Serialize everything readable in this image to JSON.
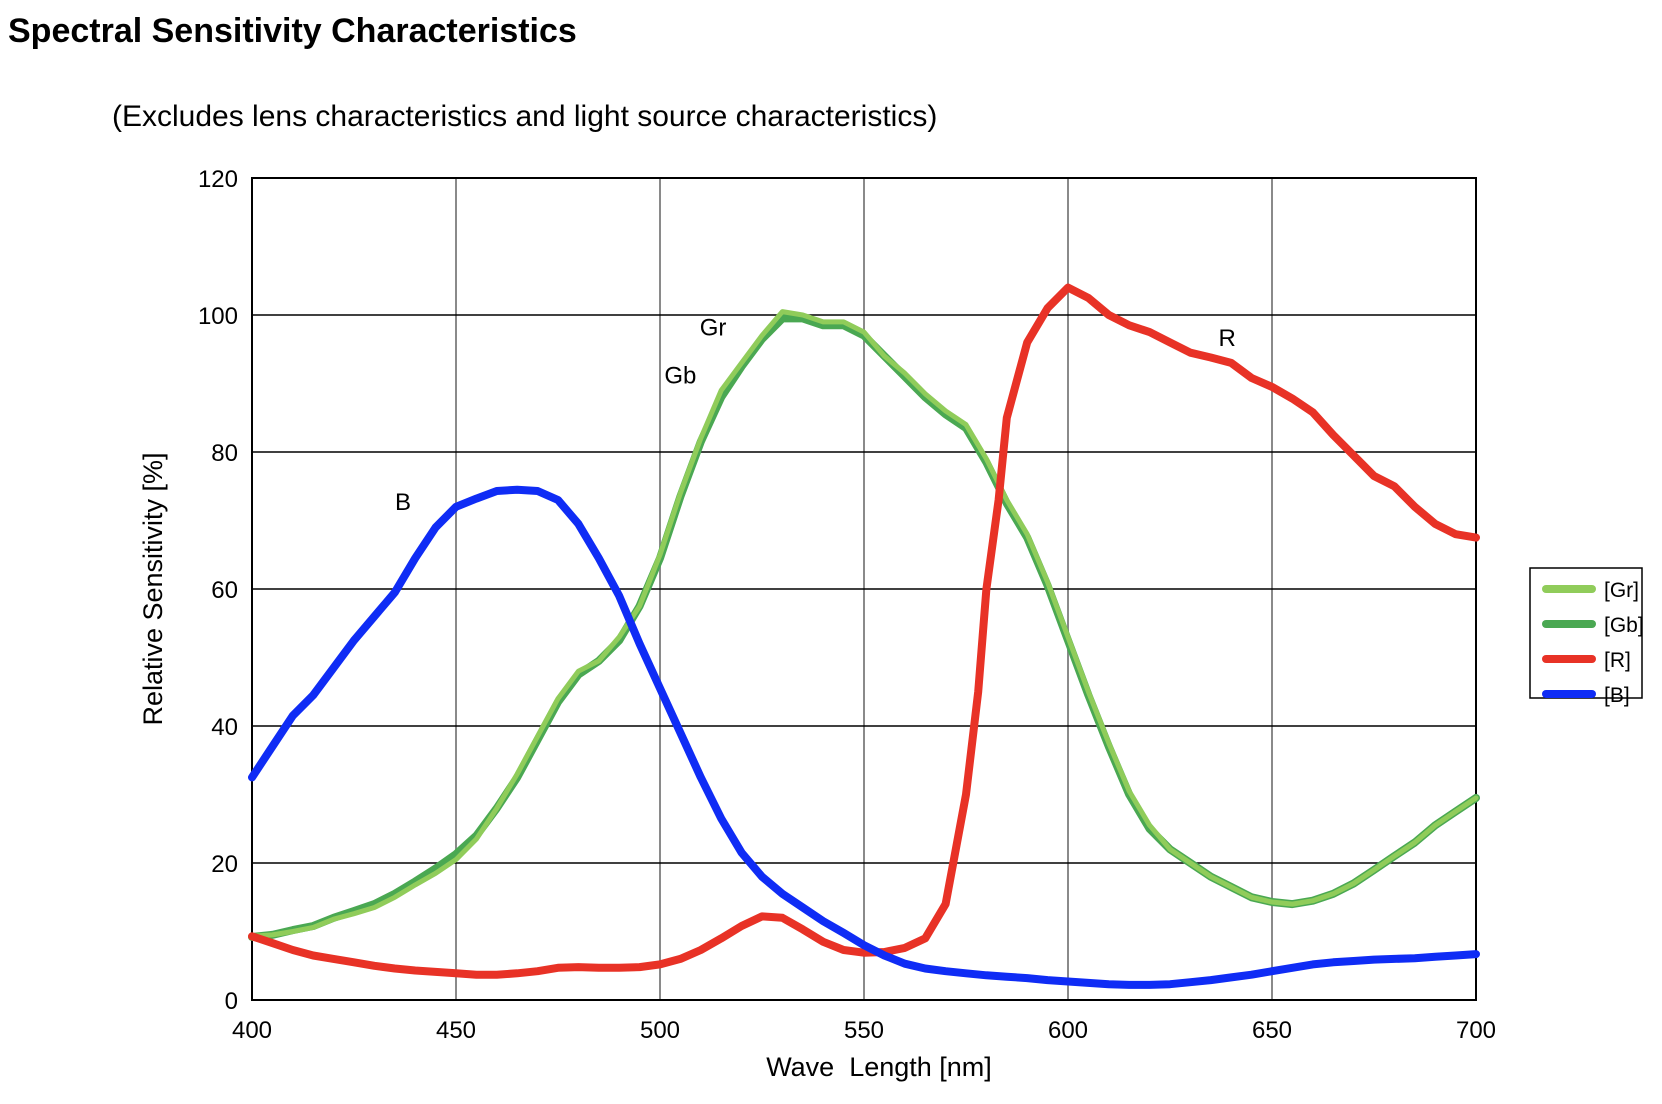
{
  "title": "Spectral Sensitivity Characteristics",
  "subtitle": "(Excludes lens characteristics and light source characteristics)",
  "chart_data": {
    "type": "line",
    "xlabel": "Wave  Length [nm]",
    "ylabel": "Relative Sensitivity [%]",
    "xlim": [
      400,
      700
    ],
    "ylim": [
      0,
      120
    ],
    "xticks": [
      400,
      450,
      500,
      550,
      600,
      650,
      700
    ],
    "yticks": [
      0,
      20,
      40,
      60,
      80,
      100,
      120
    ],
    "grid": true,
    "legend_position": "right",
    "annotations": [
      {
        "text": "B",
        "x": 437,
        "y": 71.5
      },
      {
        "text": "Gr",
        "x": 513,
        "y": 97
      },
      {
        "text": "Gb",
        "x": 505,
        "y": 90
      },
      {
        "text": "R",
        "x": 639,
        "y": 95.5
      }
    ],
    "series": [
      {
        "name": "[Gr]",
        "color": "#90cc5a",
        "points": [
          [
            400,
            9.3
          ],
          [
            405,
            9.5
          ],
          [
            410,
            10
          ],
          [
            415,
            10.6
          ],
          [
            420,
            11.8
          ],
          [
            425,
            12.6
          ],
          [
            430,
            13.5
          ],
          [
            435,
            15
          ],
          [
            440,
            16.8
          ],
          [
            445,
            18.5
          ],
          [
            450,
            20.5
          ],
          [
            455,
            23.5
          ],
          [
            460,
            28
          ],
          [
            465,
            33
          ],
          [
            470,
            38.5
          ],
          [
            475,
            44
          ],
          [
            480,
            48
          ],
          [
            485,
            49.5
          ],
          [
            490,
            53
          ],
          [
            495,
            57.5
          ],
          [
            500,
            65
          ],
          [
            505,
            74
          ],
          [
            510,
            82
          ],
          [
            515,
            89
          ],
          [
            520,
            93
          ],
          [
            525,
            97
          ],
          [
            530,
            100.5
          ],
          [
            535,
            100
          ],
          [
            540,
            99
          ],
          [
            545,
            99
          ],
          [
            550,
            97.5
          ],
          [
            555,
            94
          ],
          [
            560,
            91.5
          ],
          [
            565,
            88.5
          ],
          [
            570,
            86
          ],
          [
            575,
            84
          ],
          [
            580,
            79
          ],
          [
            585,
            73
          ],
          [
            590,
            68
          ],
          [
            595,
            61
          ],
          [
            600,
            53
          ],
          [
            605,
            45
          ],
          [
            610,
            37.5
          ],
          [
            615,
            30.5
          ],
          [
            620,
            25.5
          ],
          [
            625,
            22
          ],
          [
            630,
            20
          ],
          [
            635,
            18
          ],
          [
            640,
            16.5
          ],
          [
            645,
            15
          ],
          [
            650,
            14.3
          ],
          [
            655,
            14
          ],
          [
            660,
            14.5
          ],
          [
            665,
            15.5
          ],
          [
            670,
            17
          ],
          [
            675,
            19
          ],
          [
            680,
            21
          ],
          [
            685,
            23
          ],
          [
            690,
            25.5
          ],
          [
            695,
            27.5
          ],
          [
            700,
            29.5
          ]
        ]
      },
      {
        "name": "[Gb]",
        "color": "#4aa852",
        "points": [
          [
            400,
            9.2
          ],
          [
            405,
            9.5
          ],
          [
            410,
            10.2
          ],
          [
            415,
            10.8
          ],
          [
            420,
            12
          ],
          [
            425,
            13
          ],
          [
            430,
            14
          ],
          [
            435,
            15.5
          ],
          [
            440,
            17.3
          ],
          [
            445,
            19.2
          ],
          [
            450,
            21.3
          ],
          [
            455,
            24
          ],
          [
            460,
            28
          ],
          [
            465,
            32.5
          ],
          [
            470,
            38
          ],
          [
            475,
            43.5
          ],
          [
            480,
            47.5
          ],
          [
            485,
            49.5
          ],
          [
            490,
            52.5
          ],
          [
            495,
            57.5
          ],
          [
            500,
            64.5
          ],
          [
            505,
            73.5
          ],
          [
            510,
            81.5
          ],
          [
            515,
            88
          ],
          [
            520,
            92.5
          ],
          [
            525,
            96.5
          ],
          [
            530,
            99.5
          ],
          [
            535,
            99.5
          ],
          [
            540,
            98.5
          ],
          [
            545,
            98.5
          ],
          [
            550,
            97
          ],
          [
            555,
            94
          ],
          [
            560,
            91
          ],
          [
            565,
            88
          ],
          [
            570,
            85.5
          ],
          [
            575,
            83.5
          ],
          [
            580,
            78.5
          ],
          [
            585,
            72.5
          ],
          [
            590,
            67.5
          ],
          [
            595,
            60.5
          ],
          [
            600,
            52.5
          ],
          [
            605,
            44.5
          ],
          [
            610,
            37
          ],
          [
            615,
            30
          ],
          [
            620,
            25
          ],
          [
            625,
            22
          ],
          [
            630,
            20
          ],
          [
            635,
            18
          ],
          [
            640,
            16.5
          ],
          [
            645,
            15
          ],
          [
            650,
            14.3
          ],
          [
            655,
            14
          ],
          [
            660,
            14.5
          ],
          [
            665,
            15.5
          ],
          [
            670,
            17
          ],
          [
            675,
            19
          ],
          [
            680,
            21
          ],
          [
            685,
            23
          ],
          [
            690,
            25.5
          ],
          [
            695,
            27.5
          ],
          [
            700,
            29.5
          ]
        ]
      },
      {
        "name": "[R]",
        "color": "#e83226",
        "points": [
          [
            400,
            9.3
          ],
          [
            405,
            8.3
          ],
          [
            410,
            7.3
          ],
          [
            415,
            6.5
          ],
          [
            420,
            6
          ],
          [
            425,
            5.5
          ],
          [
            430,
            5
          ],
          [
            435,
            4.6
          ],
          [
            440,
            4.3
          ],
          [
            445,
            4.1
          ],
          [
            450,
            3.9
          ],
          [
            455,
            3.7
          ],
          [
            460,
            3.7
          ],
          [
            465,
            3.9
          ],
          [
            470,
            4.2
          ],
          [
            475,
            4.7
          ],
          [
            480,
            4.8
          ],
          [
            485,
            4.7
          ],
          [
            490,
            4.7
          ],
          [
            495,
            4.8
          ],
          [
            500,
            5.2
          ],
          [
            505,
            6
          ],
          [
            510,
            7.3
          ],
          [
            515,
            9
          ],
          [
            520,
            10.8
          ],
          [
            525,
            12.2
          ],
          [
            530,
            12
          ],
          [
            535,
            10.3
          ],
          [
            540,
            8.5
          ],
          [
            545,
            7.3
          ],
          [
            550,
            6.9
          ],
          [
            555,
            7
          ],
          [
            560,
            7.6
          ],
          [
            565,
            9
          ],
          [
            570,
            14
          ],
          [
            575,
            30
          ],
          [
            578,
            45
          ],
          [
            580,
            60
          ],
          [
            583,
            73
          ],
          [
            585,
            85
          ],
          [
            590,
            96
          ],
          [
            595,
            101
          ],
          [
            600,
            104
          ],
          [
            605,
            102.5
          ],
          [
            610,
            100
          ],
          [
            615,
            98.5
          ],
          [
            620,
            97.5
          ],
          [
            625,
            96
          ],
          [
            630,
            94.5
          ],
          [
            635,
            93.8
          ],
          [
            640,
            93
          ],
          [
            645,
            90.8
          ],
          [
            650,
            89.5
          ],
          [
            655,
            87.8
          ],
          [
            660,
            85.8
          ],
          [
            665,
            82.5
          ],
          [
            670,
            79.5
          ],
          [
            675,
            76.5
          ],
          [
            680,
            75
          ],
          [
            685,
            72
          ],
          [
            690,
            69.5
          ],
          [
            695,
            68
          ],
          [
            700,
            67.5
          ]
        ]
      },
      {
        "name": "[B]",
        "color": "#0f2cf5",
        "points": [
          [
            400,
            32.5
          ],
          [
            405,
            37
          ],
          [
            410,
            41.5
          ],
          [
            415,
            44.5
          ],
          [
            420,
            48.5
          ],
          [
            425,
            52.5
          ],
          [
            430,
            56
          ],
          [
            435,
            59.5
          ],
          [
            440,
            64.5
          ],
          [
            445,
            69
          ],
          [
            450,
            72
          ],
          [
            455,
            73.2
          ],
          [
            460,
            74.3
          ],
          [
            465,
            74.5
          ],
          [
            470,
            74.3
          ],
          [
            475,
            73
          ],
          [
            480,
            69.5
          ],
          [
            485,
            64.5
          ],
          [
            490,
            59
          ],
          [
            495,
            52
          ],
          [
            500,
            45.5
          ],
          [
            505,
            39
          ],
          [
            510,
            32.5
          ],
          [
            515,
            26.5
          ],
          [
            520,
            21.5
          ],
          [
            525,
            18
          ],
          [
            530,
            15.5
          ],
          [
            535,
            13.5
          ],
          [
            540,
            11.5
          ],
          [
            545,
            9.8
          ],
          [
            550,
            8
          ],
          [
            555,
            6.5
          ],
          [
            560,
            5.3
          ],
          [
            565,
            4.6
          ],
          [
            570,
            4.2
          ],
          [
            575,
            3.9
          ],
          [
            580,
            3.6
          ],
          [
            585,
            3.4
          ],
          [
            590,
            3.2
          ],
          [
            595,
            2.9
          ],
          [
            600,
            2.7
          ],
          [
            605,
            2.5
          ],
          [
            610,
            2.3
          ],
          [
            615,
            2.2
          ],
          [
            620,
            2.2
          ],
          [
            625,
            2.3
          ],
          [
            630,
            2.6
          ],
          [
            635,
            2.9
          ],
          [
            640,
            3.3
          ],
          [
            645,
            3.7
          ],
          [
            650,
            4.2
          ],
          [
            655,
            4.7
          ],
          [
            660,
            5.2
          ],
          [
            665,
            5.5
          ],
          [
            670,
            5.7
          ],
          [
            675,
            5.9
          ],
          [
            680,
            6
          ],
          [
            685,
            6.1
          ],
          [
            690,
            6.3
          ],
          [
            695,
            6.5
          ],
          [
            700,
            6.7
          ]
        ]
      }
    ]
  }
}
